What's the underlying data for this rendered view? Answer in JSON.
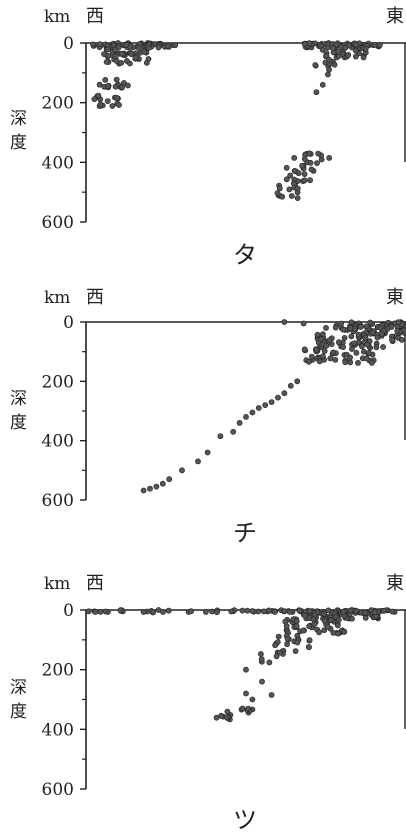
{
  "units": "km",
  "ylabel": "深度",
  "direction": {
    "west": "西",
    "east": "東"
  },
  "y_ticks": [
    "0",
    "200",
    "400",
    "600"
  ],
  "chart_data": [
    {
      "type": "scatter",
      "panel_label": "タ",
      "ylim": [
        0,
        600
      ],
      "xlim": [
        0,
        100
      ],
      "y_axis_inverted": true,
      "clusters": [
        {
          "x": [
            2,
            28
          ],
          "y": [
            0,
            15
          ],
          "n": 70
        },
        {
          "x": [
            5,
            20
          ],
          "y": [
            15,
            70
          ],
          "n": 40
        },
        {
          "x": [
            4,
            14
          ],
          "y": [
            120,
            150
          ],
          "n": 14
        },
        {
          "x": [
            2,
            12
          ],
          "y": [
            175,
            215
          ],
          "n": 14
        },
        {
          "x": [
            68,
            92
          ],
          "y": [
            0,
            15
          ],
          "n": 60
        },
        {
          "x": [
            73,
            88
          ],
          "y": [
            15,
            50
          ],
          "n": 30
        },
        {
          "x": [
            70,
            78
          ],
          "y": [
            50,
            110
          ],
          "n": 10
        },
        {
          "x": [
            65,
            74
          ],
          "y": [
            370,
            410
          ],
          "n": 12
        },
        {
          "x": [
            62,
            72
          ],
          "y": [
            410,
            470
          ],
          "n": 18
        },
        {
          "x": [
            59,
            67
          ],
          "y": [
            470,
            520
          ],
          "n": 14
        }
      ],
      "extra_points": [
        [
          72,
          165
        ],
        [
          74,
          140
        ],
        [
          76,
          385
        ]
      ]
    },
    {
      "type": "scatter",
      "panel_label": "チ",
      "ylim": [
        0,
        600
      ],
      "xlim": [
        0,
        100
      ],
      "y_axis_inverted": true,
      "clusters": [
        {
          "x": [
            78,
            100
          ],
          "y": [
            0,
            40
          ],
          "n": 70
        },
        {
          "x": [
            72,
            100
          ],
          "y": [
            40,
            90
          ],
          "n": 60
        },
        {
          "x": [
            68,
            90
          ],
          "y": [
            90,
            140
          ],
          "n": 40
        }
      ],
      "extra_points": [
        [
          62,
          0
        ],
        [
          68,
          5
        ],
        [
          75,
          20
        ],
        [
          66,
          200
        ],
        [
          64,
          215
        ],
        [
          62,
          240
        ],
        [
          60,
          255
        ],
        [
          58,
          270
        ],
        [
          56,
          280
        ],
        [
          54,
          290
        ],
        [
          52,
          305
        ],
        [
          50,
          320
        ],
        [
          48,
          340
        ],
        [
          46,
          370
        ],
        [
          42,
          385
        ],
        [
          38,
          440
        ],
        [
          35,
          470
        ],
        [
          30,
          500
        ],
        [
          26,
          530
        ],
        [
          24,
          545
        ],
        [
          22,
          555
        ],
        [
          20,
          562
        ],
        [
          18,
          568
        ]
      ]
    },
    {
      "type": "scatter",
      "panel_label": "ツ",
      "ylim": [
        0,
        600
      ],
      "xlim": [
        0,
        100
      ],
      "y_axis_inverted": true,
      "clusters": [
        {
          "x": [
            0,
            100
          ],
          "y": [
            0,
            8
          ],
          "n": 70
        },
        {
          "x": [
            68,
            92
          ],
          "y": [
            0,
            30
          ],
          "n": 80
        },
        {
          "x": [
            62,
            82
          ],
          "y": [
            30,
            80
          ],
          "n": 50
        },
        {
          "x": [
            58,
            70
          ],
          "y": [
            80,
            140
          ],
          "n": 20
        },
        {
          "x": [
            54,
            62
          ],
          "y": [
            140,
            180
          ],
          "n": 8
        },
        {
          "x": [
            46,
            52
          ],
          "y": [
            330,
            350
          ],
          "n": 7
        },
        {
          "x": [
            40,
            46
          ],
          "y": [
            340,
            370
          ],
          "n": 10
        }
      ],
      "extra_points": [
        [
          50,
          200
        ],
        [
          55,
          240
        ],
        [
          50,
          280
        ],
        [
          52,
          300
        ],
        [
          58,
          285
        ]
      ]
    }
  ]
}
